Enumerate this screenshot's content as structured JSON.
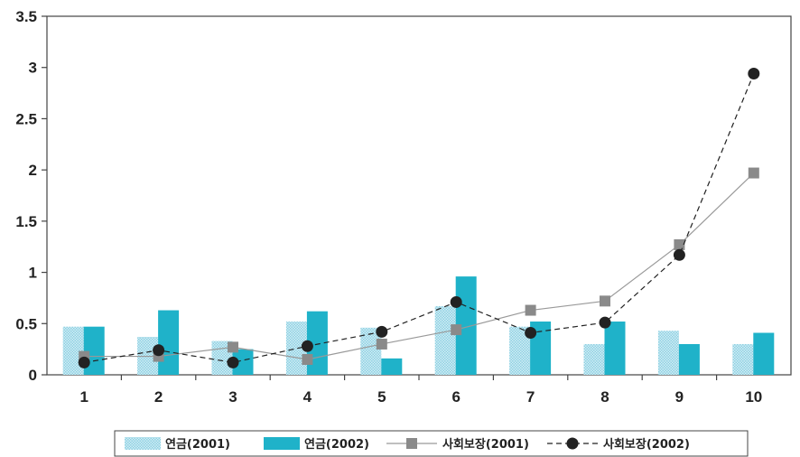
{
  "chart_data": {
    "type": "bar",
    "categories": [
      "1",
      "2",
      "3",
      "4",
      "5",
      "6",
      "7",
      "8",
      "9",
      "10"
    ],
    "ylim": [
      0,
      3.5
    ],
    "yticks": [
      "0",
      "0.5",
      "1",
      "1.5",
      "2",
      "2.5",
      "3",
      "3.5"
    ],
    "grid": false,
    "legend_position": "bottom",
    "series": [
      {
        "name": "연금(2001)",
        "kind": "bar",
        "color": "#a9dce9",
        "pattern": "dotted",
        "values": [
          0.47,
          0.37,
          0.33,
          0.52,
          0.46,
          0.67,
          0.47,
          0.3,
          0.43,
          0.3
        ]
      },
      {
        "name": "연금(2002)",
        "kind": "bar",
        "color": "#1fb2c9",
        "values": [
          0.47,
          0.63,
          0.25,
          0.62,
          0.16,
          0.96,
          0.52,
          0.52,
          0.3,
          0.41
        ]
      },
      {
        "name": "사회보장(2001)",
        "kind": "line",
        "color": "#999999",
        "marker": "square",
        "dash": "solid",
        "values": [
          0.18,
          0.18,
          0.27,
          0.15,
          0.3,
          0.44,
          0.63,
          0.72,
          1.27,
          1.97
        ]
      },
      {
        "name": "사회보장(2002)",
        "kind": "line",
        "color": "#222222",
        "marker": "circle",
        "dash": "dashed",
        "values": [
          0.12,
          0.24,
          0.12,
          0.28,
          0.42,
          0.71,
          0.41,
          0.51,
          1.17,
          2.94
        ]
      }
    ]
  }
}
